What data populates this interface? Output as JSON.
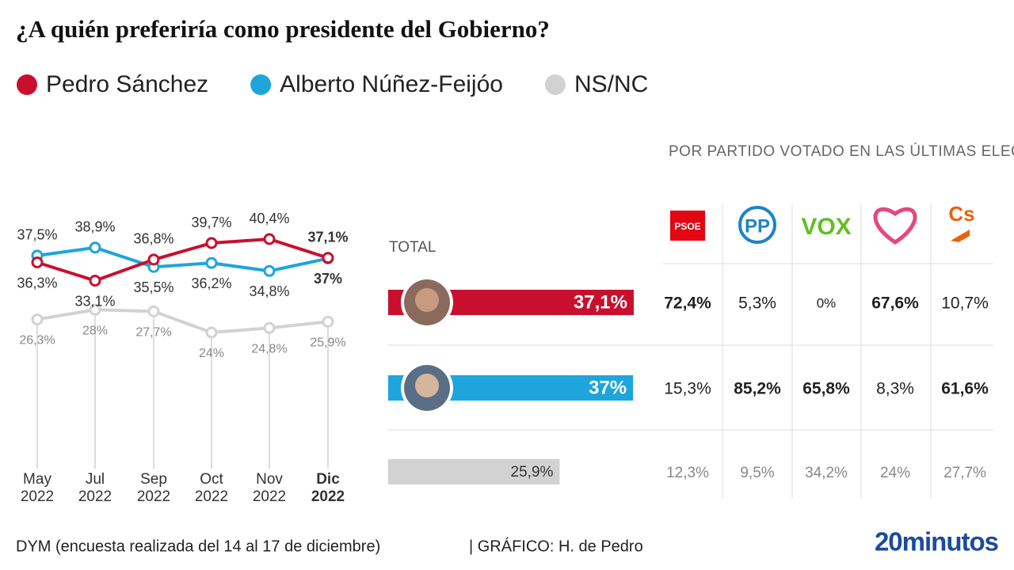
{
  "title": "¿A quién preferiría como presidente del Gobierno?",
  "chart_data": [
    {
      "type": "line",
      "categories": [
        "May 2022",
        "Jul 2022",
        "Sep 2022",
        "Oct 2022",
        "Nov 2022",
        "Dic 2022"
      ],
      "series": [
        {
          "name": "Pedro Sánchez",
          "color": "#c8102e",
          "values": [
            36.3,
            33.1,
            36.8,
            39.7,
            40.4,
            37.1
          ],
          "value_labels": [
            "36,3%",
            "33,1%",
            "36,8%",
            "39,7%",
            "40,4%",
            "37,1%"
          ]
        },
        {
          "name": "Alberto Núñez-Feijóo",
          "color": "#1ea5dc",
          "values": [
            37.5,
            38.9,
            35.5,
            36.2,
            34.8,
            37
          ],
          "value_labels": [
            "37,5%",
            "38,9%",
            "35,5%",
            "36,2%",
            "34,8%",
            "37%"
          ]
        },
        {
          "name": "NS/NC",
          "color": "#d2d2d2",
          "values": [
            26.3,
            28,
            27.7,
            24,
            24.8,
            25.9
          ],
          "value_labels": [
            "26,3%",
            "28%",
            "27,7%",
            "24%",
            "24,8%",
            "25,9%"
          ]
        }
      ]
    },
    {
      "type": "bar",
      "title": "TOTAL",
      "values": [
        37.1,
        37,
        25.9
      ],
      "value_labels": [
        "37,1%",
        "37%",
        "25,9%"
      ],
      "colors": [
        "#c8102e",
        "#1ea5dc",
        "#d2d2d2"
      ]
    }
  ],
  "table": {
    "title": "POR PARTIDO VOTADO EN LAS ÚLTIMAS ELECCIONES GENERALES",
    "columns": [
      "PSOE",
      "PP",
      "VOX",
      null,
      "Cs"
    ],
    "rows": [
      [
        72.4,
        5.3,
        0,
        67.6,
        10.7
      ],
      [
        15.3,
        85.2,
        65.8,
        8.3,
        61.6
      ],
      [
        12.3,
        9.5,
        34.2,
        24,
        27.7
      ]
    ],
    "value_labels": [
      [
        "72,4%",
        "5,3%",
        "0%",
        "67,6%",
        "10,7%"
      ],
      [
        "15,3%",
        "85,2%",
        "65,8%",
        "8,3%",
        "61,6%"
      ],
      [
        "12,3%",
        "9,5%",
        "34,2%",
        "24%",
        "27,7%"
      ]
    ]
  },
  "footer": {
    "source": "DYM (encuesta realizada del 14 al 17 de diciembre)",
    "credit": "| GRÁFICO: H. de Pedro",
    "brand": "20minutos"
  }
}
